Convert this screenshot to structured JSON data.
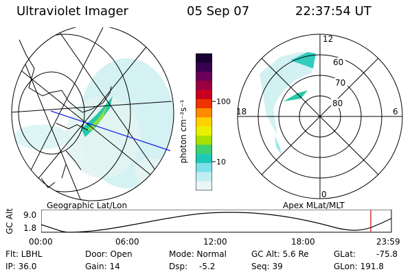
{
  "header": {
    "title": "Ultraviolet Imager",
    "date": "05 Sep 07",
    "time": "22:37:54 UT"
  },
  "colorbar": {
    "label": "photon cm⁻²s⁻¹",
    "ticks": [
      "100",
      "10"
    ],
    "colors": [
      "#1a0033",
      "#3a0050",
      "#6a005a",
      "#9a0040",
      "#c80020",
      "#ee3300",
      "#ff8a00",
      "#ffd000",
      "#e8f000",
      "#a8e000",
      "#40d070",
      "#20c8b8",
      "#7fe0e8",
      "#c0eef4",
      "#eaf6f8"
    ]
  },
  "panels": {
    "geo_label": "Geographic Lat/Lon",
    "apex_label": "Apex MLat/MLT",
    "polar": {
      "mlt_labels": [
        "12",
        "18",
        "6",
        "0"
      ],
      "lat_labels": [
        "60",
        "70",
        "80"
      ]
    }
  },
  "orbit": {
    "ylabel": "GC Alt",
    "yticks": [
      "9.0",
      "1.8"
    ],
    "xticks": [
      "00:00",
      "06:00",
      "12:00",
      "18:00",
      "23:59"
    ],
    "marker_color": "#d00000"
  },
  "footer": {
    "flt": "Flt: LBHL",
    "ip": "IP: 36.0",
    "door": "Door: Open",
    "gain": "Gain: 14",
    "mode": "Mode: Normal",
    "dsp_label": "Dsp:",
    "dsp_value": "-5.2",
    "gcalt": "GC Alt: 5.6 Re",
    "seq": "Seq: 39",
    "glat_label": "GLat:",
    "glat_value": "-75.8",
    "glon": "GLon: 191.8"
  }
}
